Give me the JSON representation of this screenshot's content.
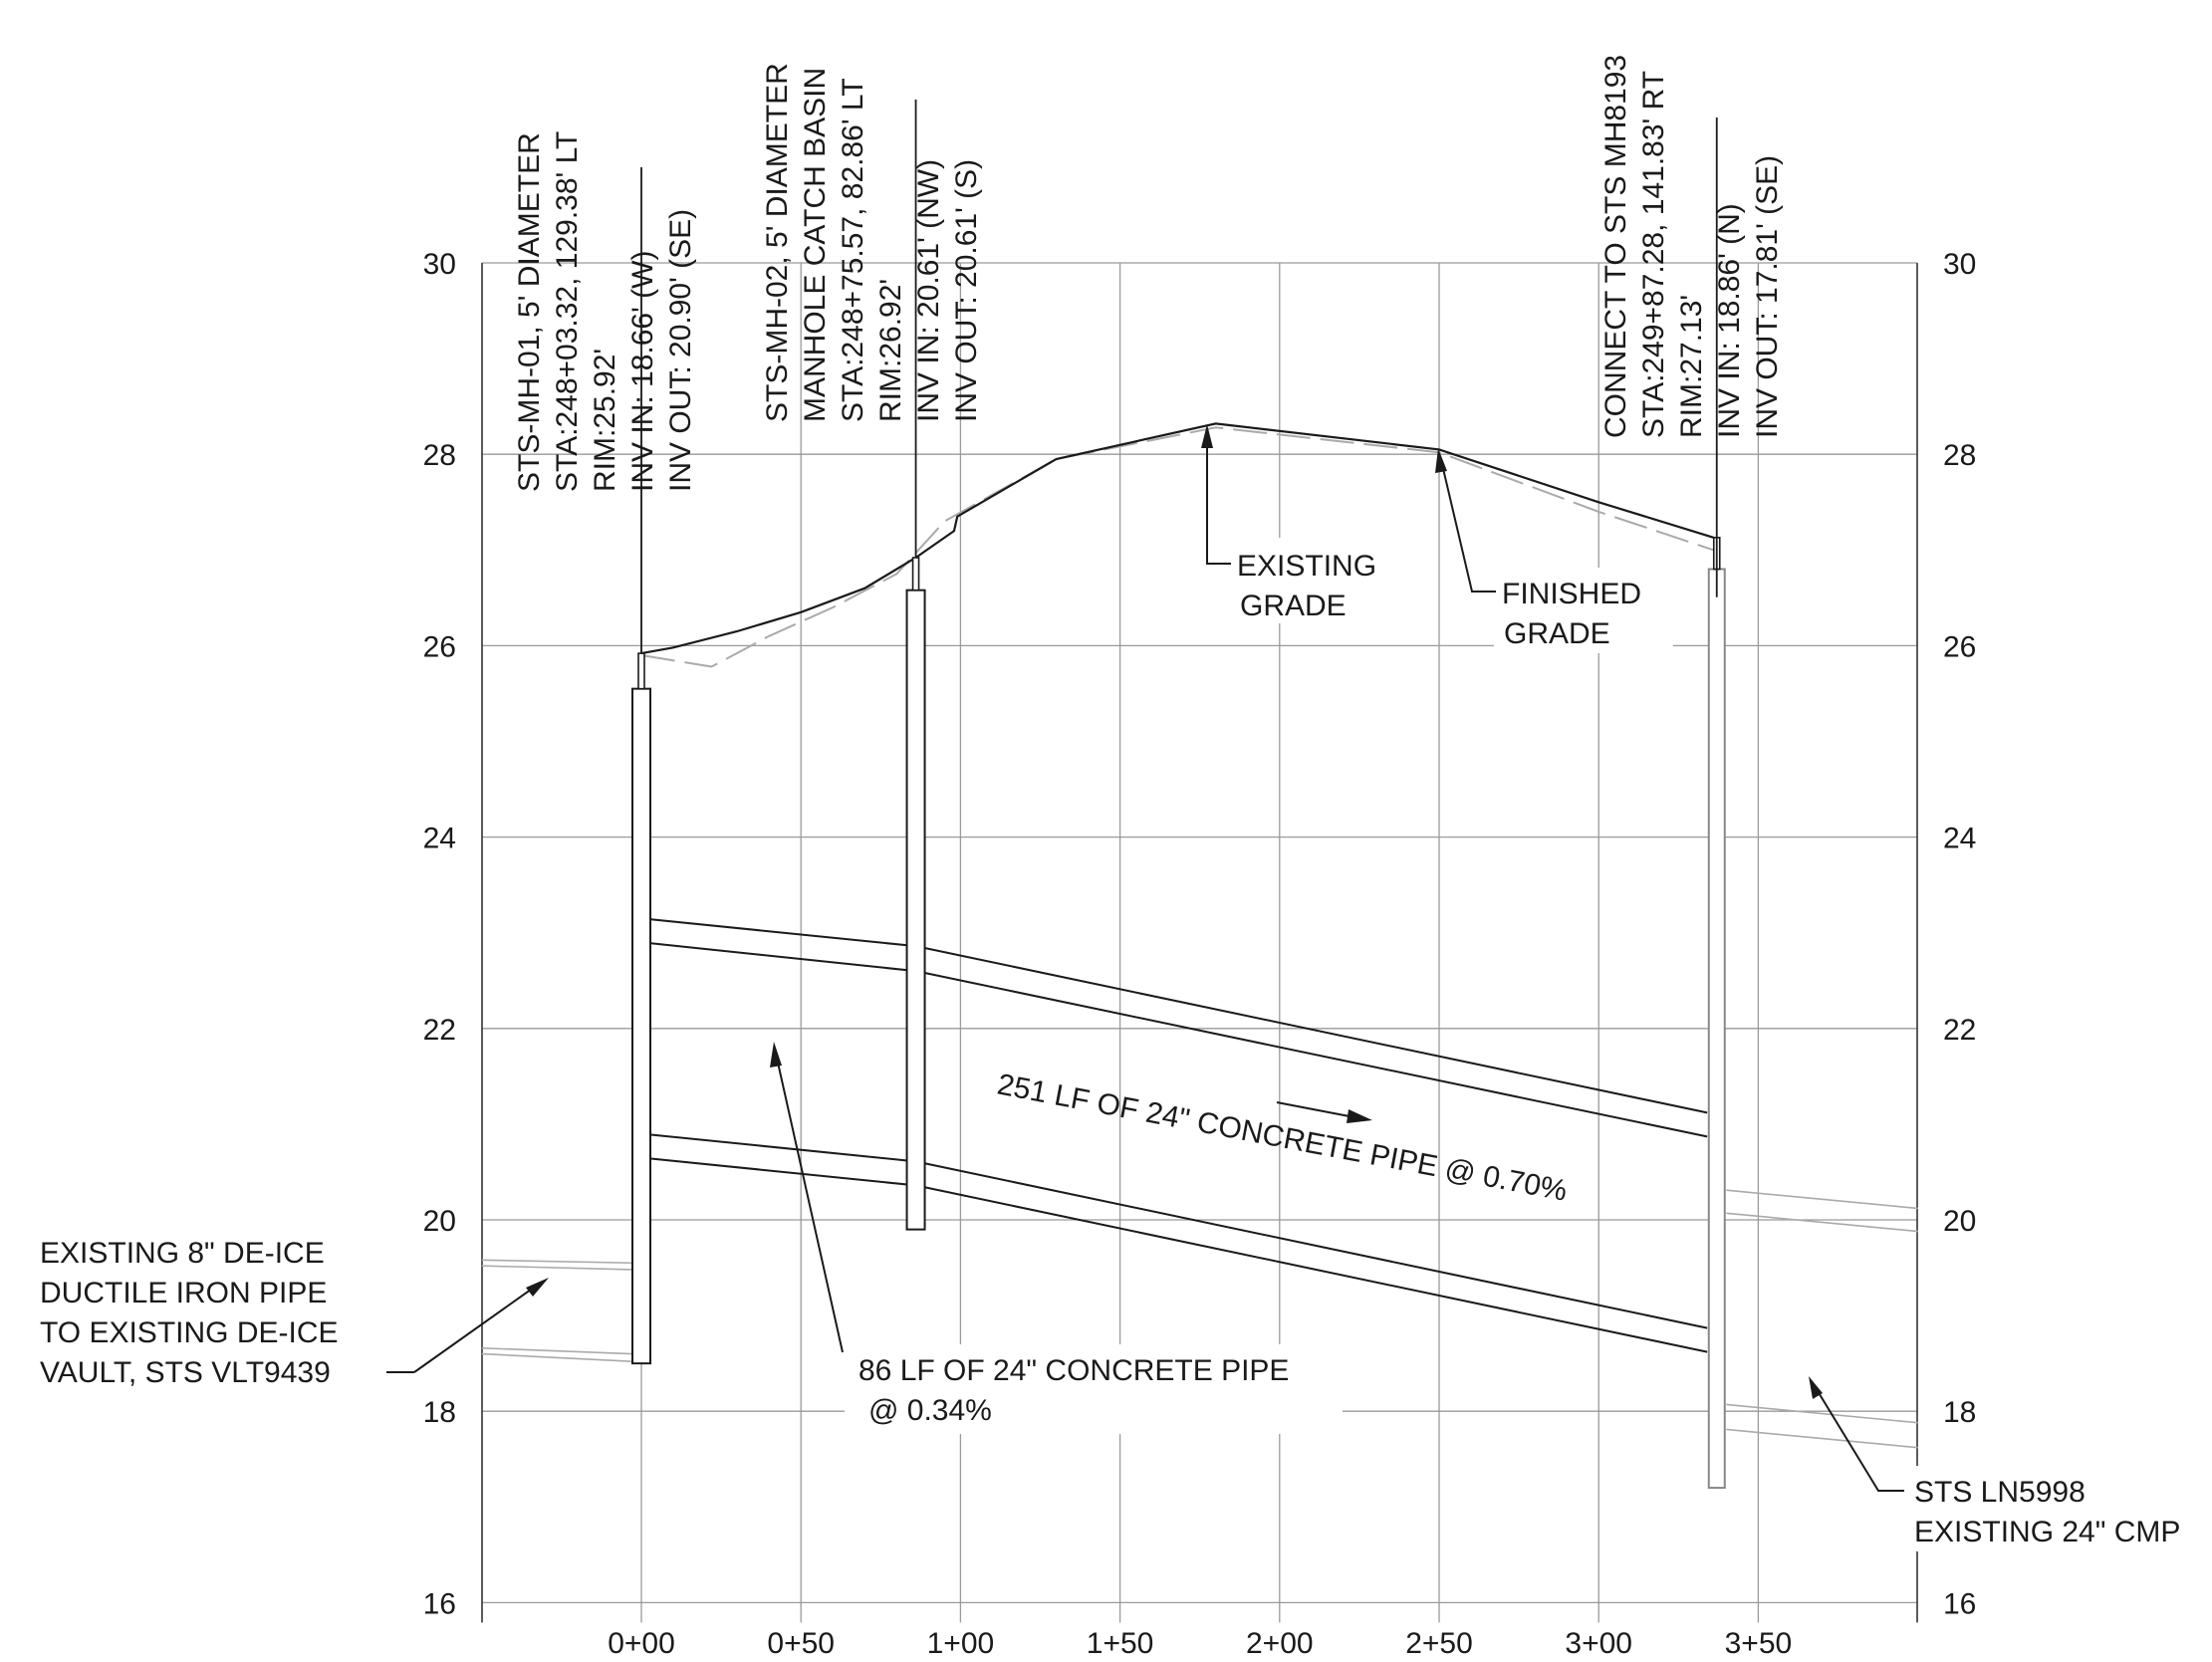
{
  "profile": {
    "elevation_axis": {
      "ticks": [
        {
          "value": 30,
          "label": "30"
        },
        {
          "value": 28,
          "label": "28"
        },
        {
          "value": 26,
          "label": "26"
        },
        {
          "value": 24,
          "label": "24"
        },
        {
          "value": 22,
          "label": "22"
        },
        {
          "value": 20,
          "label": "20"
        },
        {
          "value": 18,
          "label": "18"
        },
        {
          "value": 16,
          "label": "16"
        }
      ],
      "range": [
        16,
        30
      ]
    },
    "station_axis": {
      "ticks": [
        {
          "value": 0,
          "label": "0+00"
        },
        {
          "value": 50,
          "label": "0+50"
        },
        {
          "value": 100,
          "label": "1+00"
        },
        {
          "value": 150,
          "label": "1+50"
        },
        {
          "value": 200,
          "label": "2+00"
        },
        {
          "value": 250,
          "label": "2+50"
        },
        {
          "value": 300,
          "label": "3+00"
        },
        {
          "value": 350,
          "label": "3+50"
        }
      ],
      "range": [
        -50,
        400
      ]
    },
    "structures": [
      {
        "id": "mh1",
        "lines": [
          "STS-MH-01, 5' DIAMETER",
          "STA:248+03.32, 129.38' LT",
          "RIM:25.92'",
          "INV IN: 18.66' (W)",
          "INV OUT: 20.90' (SE)"
        ],
        "station": 0,
        "rim": 25.92,
        "bottom": 18.5
      },
      {
        "id": "mh2",
        "lines": [
          "STS-MH-02, 5' DIAMETER",
          "MANHOLE CATCH BASIN",
          "STA:248+75.57, 82.86' LT",
          "RIM:26.92'",
          "INV IN: 20.61' (NW)",
          "INV OUT: 20.61' (S)"
        ],
        "station": 86,
        "rim": 26.92,
        "bottom": 19.9
      },
      {
        "id": "mh3",
        "lines": [
          "CONNECT TO STS MH8193",
          "STA:249+87.28, 141.83' RT",
          "RIM:27.13'",
          "INV IN: 18.86' (N)",
          "INV OUT: 17.81' (SE)"
        ],
        "station": 337,
        "rim": 27.13,
        "bottom": 17.2
      }
    ],
    "pipes": [
      {
        "id": "pipe1",
        "label_lines": [
          "86 LF OF 24\" CONCRETE PIPE",
          "@ 0.34%"
        ],
        "length_lf": 86,
        "slope_pct": 0.34
      },
      {
        "id": "pipe2",
        "label_lines": [
          "251 LF OF 24\" CONCRETE PIPE @ 0.70%"
        ],
        "length_lf": 251,
        "slope_pct": 0.7
      }
    ],
    "callouts": {
      "existing_grade": [
        "EXISTING",
        "GRADE"
      ],
      "finished_grade": [
        "FINISHED",
        "GRADE"
      ],
      "deice_pipe": [
        "EXISTING 8\" DE-ICE",
        "DUCTILE IRON PIPE",
        "TO EXISTING DE-ICE",
        "VAULT, STS VLT9439"
      ],
      "cmp": [
        "STS LN5998",
        "EXISTING 24\" CMP"
      ]
    },
    "finished_grade": [
      [
        0,
        25.92
      ],
      [
        10,
        25.98
      ],
      [
        30,
        26.15
      ],
      [
        50,
        26.35
      ],
      [
        70,
        26.6
      ],
      [
        86,
        26.92
      ],
      [
        98,
        27.2
      ],
      [
        99,
        27.35
      ],
      [
        130,
        27.95
      ],
      [
        180,
        28.32
      ],
      [
        250,
        28.05
      ],
      [
        300,
        27.5
      ],
      [
        336,
        27.13
      ]
    ],
    "existing_grade": [
      [
        0,
        25.9
      ],
      [
        22,
        25.78
      ],
      [
        40,
        26.1
      ],
      [
        60,
        26.4
      ],
      [
        80,
        26.75
      ],
      [
        95,
        27.3
      ],
      [
        130,
        27.95
      ],
      [
        180,
        28.28
      ],
      [
        250,
        28.02
      ],
      [
        300,
        27.4
      ],
      [
        336,
        27.0
      ]
    ],
    "colors": {
      "line": "#1a1a1a",
      "grid": "#9a9a9a",
      "existing": "#aaaaaa"
    }
  }
}
